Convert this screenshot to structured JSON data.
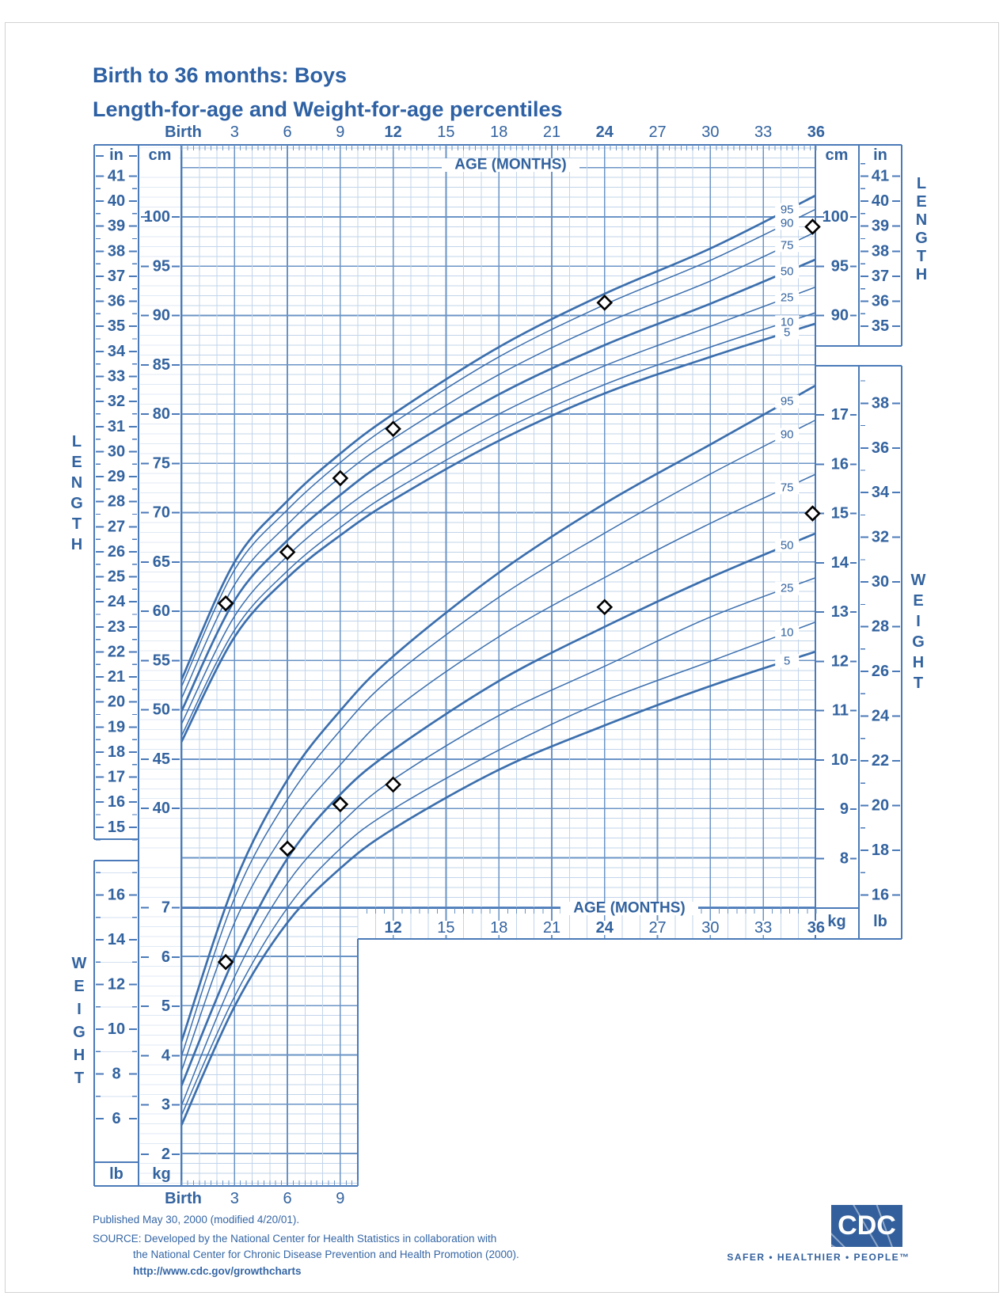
{
  "title": {
    "line1": "Birth to 36 months: Boys",
    "line2": "Length-for-age and Weight-for-age percentiles"
  },
  "chart_labels": {
    "age_axis_title": "AGE (MONTHS)",
    "top_months": [
      "Birth",
      "3",
      "6",
      "9",
      "12",
      "15",
      "18",
      "21",
      "24",
      "27",
      "30",
      "33",
      "36"
    ],
    "top_months_bold": [
      "Birth",
      "12",
      "24",
      "36"
    ],
    "mid_months": [
      "12",
      "15",
      "18",
      "21",
      "24",
      "27",
      "30",
      "33",
      "36"
    ],
    "mid_months_bold": [
      "12",
      "24",
      "36"
    ],
    "bottom_months": [
      "Birth",
      "3",
      "6",
      "9"
    ],
    "bottom_months_bold": [
      "Birth"
    ],
    "side_left_top": "LENGTH",
    "side_left_bottom": "WEIGHT",
    "side_right_top": "LENGTH",
    "side_right_bottom": "WEIGHT",
    "units": {
      "inch": "in",
      "cm": "cm",
      "kg": "kg",
      "lb": "lb"
    },
    "length_cm_ticks_left": [
      "100",
      "95",
      "90",
      "85",
      "80",
      "75",
      "70",
      "65",
      "60",
      "55",
      "50",
      "45",
      "40"
    ],
    "length_in_ticks_left": [
      "41",
      "40",
      "39",
      "38",
      "37",
      "36",
      "35",
      "34",
      "33",
      "32",
      "31",
      "30",
      "29",
      "28",
      "27",
      "26",
      "25",
      "24",
      "23",
      "22",
      "21",
      "20",
      "19",
      "18",
      "17",
      "16",
      "15"
    ],
    "length_cm_ticks_right": [
      "100",
      "95",
      "90"
    ],
    "length_in_ticks_right": [
      "41",
      "40",
      "39",
      "38",
      "37",
      "36",
      "35"
    ],
    "weight_kg_ticks_right": [
      "17",
      "16",
      "15",
      "14",
      "13",
      "12",
      "11",
      "10",
      "9",
      "8"
    ],
    "weight_lb_ticks_right": [
      "38",
      "36",
      "34",
      "32",
      "30",
      "28",
      "26",
      "24",
      "22",
      "20",
      "18",
      "16"
    ],
    "weight_kg_ticks_left": [
      "7",
      "6",
      "5",
      "4",
      "3",
      "2"
    ],
    "weight_lb_ticks_left": [
      "16",
      "14",
      "12",
      "10",
      "8",
      "6"
    ],
    "percentile_labels": [
      "95",
      "90",
      "75",
      "50",
      "25",
      "10",
      "5"
    ]
  },
  "chart_data": {
    "type": "line",
    "title": "Birth to 36 months: Boys — Length-for-age and Weight-for-age percentiles",
    "xlabel": "AGE (MONTHS)",
    "x_range_months": [
      0,
      36
    ],
    "x_major_ticks_months": [
      0,
      3,
      6,
      9,
      12,
      15,
      18,
      21,
      24,
      27,
      30,
      33,
      36
    ],
    "grid": true,
    "percentile_series_months": [
      0,
      3,
      6,
      9,
      12,
      18,
      24,
      30,
      36
    ],
    "emphasized_percentiles": [
      "95",
      "50",
      "5"
    ],
    "length_for_age": {
      "ylabel": "LENGTH",
      "units": "cm",
      "secondary_units": "in",
      "ylim_cm": [
        43,
        107
      ],
      "series": [
        {
          "percentile": "95",
          "values_cm": [
            53.1,
            65.0,
            71.2,
            76.0,
            80.0,
            86.8,
            92.2,
            96.8,
            102.2
          ]
        },
        {
          "percentile": "90",
          "values_cm": [
            52.4,
            64.2,
            70.3,
            75.1,
            79.1,
            85.8,
            91.1,
            95.6,
            100.8
          ]
        },
        {
          "percentile": "75",
          "values_cm": [
            51.2,
            62.7,
            68.8,
            73.6,
            77.5,
            84.0,
            89.2,
            93.5,
            98.5
          ]
        },
        {
          "percentile": "50",
          "values_cm": [
            49.9,
            61.1,
            67.2,
            71.8,
            75.7,
            82.0,
            87.0,
            91.2,
            95.7
          ]
        },
        {
          "percentile": "25",
          "values_cm": [
            48.6,
            59.5,
            65.6,
            70.1,
            73.8,
            80.0,
            84.9,
            88.9,
            92.9
          ]
        },
        {
          "percentile": "10",
          "values_cm": [
            47.4,
            58.1,
            64.1,
            68.5,
            72.2,
            78.2,
            83.0,
            86.8,
            90.3
          ]
        },
        {
          "percentile": "5",
          "values_cm": [
            46.8,
            57.4,
            63.4,
            67.7,
            71.3,
            77.3,
            82.1,
            85.8,
            89.2
          ]
        }
      ]
    },
    "weight_for_age": {
      "ylabel": "WEIGHT",
      "units": "kg",
      "secondary_units": "lb",
      "ylim_kg": [
        2,
        17.6
      ],
      "series": [
        {
          "percentile": "95",
          "values_kg": [
            4.3,
            7.5,
            9.6,
            11.0,
            12.1,
            13.8,
            15.2,
            16.4,
            17.6
          ]
        },
        {
          "percentile": "90",
          "values_kg": [
            4.0,
            7.2,
            9.2,
            10.6,
            11.7,
            13.3,
            14.6,
            15.8,
            16.9
          ]
        },
        {
          "percentile": "75",
          "values_kg": [
            3.7,
            6.7,
            8.6,
            9.9,
            11.0,
            12.5,
            13.7,
            14.8,
            15.8
          ]
        },
        {
          "percentile": "50",
          "values_kg": [
            3.4,
            6.0,
            8.0,
            9.3,
            10.2,
            11.6,
            12.7,
            13.7,
            14.6
          ]
        },
        {
          "percentile": "25",
          "values_kg": [
            3.0,
            5.6,
            7.5,
            8.7,
            9.6,
            10.9,
            11.9,
            12.9,
            13.7
          ]
        },
        {
          "percentile": "10",
          "values_kg": [
            2.8,
            5.2,
            7.0,
            8.2,
            9.0,
            10.2,
            11.2,
            12.0,
            12.8
          ]
        },
        {
          "percentile": "5",
          "values_kg": [
            2.6,
            5.0,
            6.7,
            7.8,
            8.6,
            9.8,
            10.7,
            11.5,
            12.2
          ]
        }
      ]
    },
    "plotted_points": {
      "marker": "open-diamond",
      "length": {
        "months": [
          2.5,
          6,
          9,
          12,
          24,
          35.8
        ],
        "values_cm": [
          60.8,
          66.0,
          73.5,
          78.5,
          91.3,
          99.0
        ]
      },
      "weight": {
        "months": [
          2.5,
          6,
          9,
          12,
          24,
          35.8
        ],
        "values_kg": [
          5.9,
          8.2,
          9.1,
          9.5,
          13.1,
          15.0
        ]
      }
    }
  },
  "footer": {
    "published": "Published May 30, 2000 (modified 4/20/01).",
    "source_label": "SOURCE:",
    "source_line1": "SOURCE: Developed by the National Center for Health Statistics in collaboration with",
    "source_line2": "the National Center for Chronic Disease Prevention and Health Promotion (2000).",
    "url": "http://www.cdc.gov/growthcharts"
  },
  "logo": {
    "text": "CDC",
    "tagline": "SAFER • HEALTHIER • PEOPLE™"
  },
  "colors": {
    "title_blue": "#2e61a4",
    "text_blue": "#33639f",
    "curve_blue": "#3c6fad",
    "grid_major": "#6b94c6",
    "grid_minor": "#c2d4ea",
    "border_blue": "#4b7ab8",
    "logo_blue": "#33609c",
    "point_stroke": "#000000",
    "point_fill": "#ffffff"
  }
}
